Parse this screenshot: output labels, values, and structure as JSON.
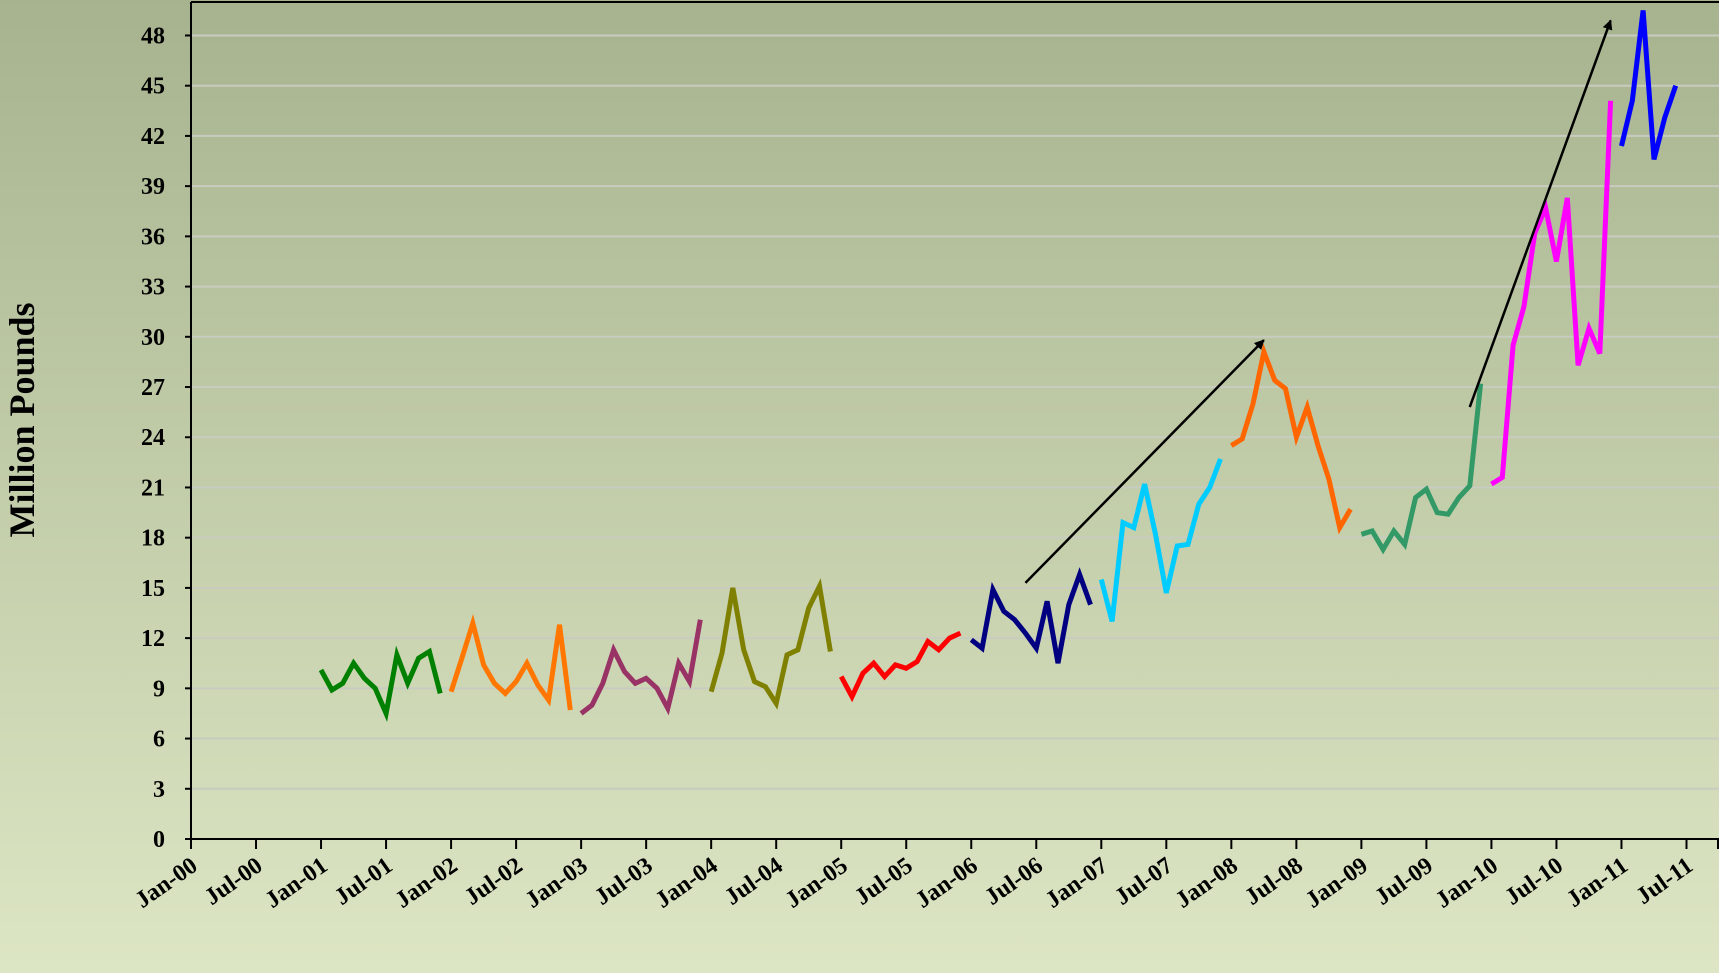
{
  "chart_data": {
    "type": "line",
    "title": "",
    "ylabel": "Million Pounds",
    "xlabel": "",
    "ylim": [
      0,
      50
    ],
    "yticks": [
      0,
      3,
      6,
      9,
      12,
      15,
      18,
      21,
      24,
      27,
      30,
      33,
      36,
      39,
      42,
      45,
      48
    ],
    "xlim": [
      "2000-01",
      "2011-10"
    ],
    "xtick_labels": [
      "Jan-00",
      "Jul-00",
      "Jan-01",
      "Jul-01",
      "Jan-02",
      "Jul-02",
      "Jan-03",
      "Jul-03",
      "Jan-04",
      "Jul-04",
      "Jan-05",
      "Jul-05",
      "Jan-06",
      "Jul-06",
      "Jan-07",
      "Jul-07",
      "Jan-08",
      "Jul-08",
      "Jan-09",
      "Jul-09",
      "Jan-10",
      "Jul-10",
      "Jan-11",
      "Jul-11"
    ],
    "grid": true,
    "background": {
      "top": "#a7b38f",
      "bottom": "#dde6c4"
    },
    "series": [
      {
        "color": "#008000",
        "start": "2001-01",
        "values": [
          10.1,
          8.9,
          9.3,
          10.5,
          9.6,
          9.0,
          7.5,
          11.0,
          9.3,
          10.8,
          11.2,
          8.7
        ]
      },
      {
        "color": "#ff7700",
        "start": "2002-01",
        "values": [
          8.8,
          10.8,
          12.9,
          10.4,
          9.3,
          8.7,
          9.4,
          10.5,
          9.2,
          8.3,
          12.8,
          7.7
        ]
      },
      {
        "color": "#993366",
        "start": "2003-01",
        "values": [
          7.5,
          8.0,
          9.3,
          11.3,
          10.0,
          9.3,
          9.6,
          9.0,
          7.8,
          10.5,
          9.4,
          13.1
        ]
      },
      {
        "color": "#808000",
        "start": "2004-01",
        "values": [
          8.8,
          11.1,
          15.0,
          11.3,
          9.4,
          9.1,
          8.1,
          11.0,
          11.3,
          13.8,
          15.1,
          11.2
        ]
      },
      {
        "color": "#ff0000",
        "start": "2005-01",
        "values": [
          9.7,
          8.5,
          9.9,
          10.5,
          9.7,
          10.4,
          10.2,
          10.6,
          11.8,
          11.3,
          12.0,
          12.3
        ]
      },
      {
        "color": "#000080",
        "start": "2006-01",
        "values": [
          11.9,
          11.4,
          14.9,
          13.6,
          13.1,
          12.3,
          11.4,
          14.2,
          10.5,
          14.0,
          15.8,
          14.0
        ]
      },
      {
        "color": "#00ccff",
        "start": "2007-01",
        "values": [
          15.5,
          13.0,
          18.9,
          18.6,
          21.2,
          18.2,
          14.7,
          17.5,
          17.6,
          20.0,
          21.0,
          22.7
        ]
      },
      {
        "color": "#ff6600",
        "start": "2008-01",
        "values": [
          23.5,
          23.9,
          26.0,
          29.1,
          27.4,
          26.9,
          24.0,
          25.8,
          23.5,
          21.5,
          18.6,
          19.7
        ]
      },
      {
        "color": "#339966",
        "start": "2009-01",
        "values": [
          18.2,
          18.4,
          17.3,
          18.4,
          17.6,
          20.4,
          20.9,
          19.5,
          19.4,
          20.4,
          21.1,
          27.2
        ]
      },
      {
        "color": "#ff00ff",
        "start": "2010-01",
        "values": [
          21.2,
          21.6,
          29.5,
          31.8,
          36.2,
          37.7,
          34.5,
          38.3,
          28.3,
          30.5,
          29.0,
          44.1
        ]
      },
      {
        "color": "#0000ff",
        "start": "2011-01",
        "values": [
          41.4,
          44.1,
          49.5,
          40.6,
          43.1,
          45.0
        ]
      }
    ],
    "annotations": [
      {
        "type": "arrow",
        "from": {
          "x": "2006-06",
          "y": 15.3
        },
        "to": {
          "x": "2008-04",
          "y": 29.8
        }
      },
      {
        "type": "arrow",
        "from": {
          "x": "2009-11",
          "y": 25.8
        },
        "to": {
          "x": "2010-12",
          "y": 48.9
        }
      }
    ]
  }
}
